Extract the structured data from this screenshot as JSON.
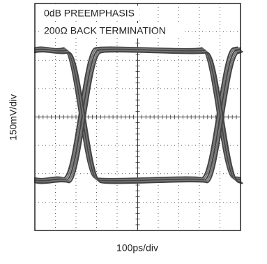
{
  "annotations": [
    "0dB PREEMPHASIS",
    "200Ω BACK TERMINATION"
  ],
  "y_axis_label": "150mV/div",
  "x_axis_label": "100ps/div"
}
